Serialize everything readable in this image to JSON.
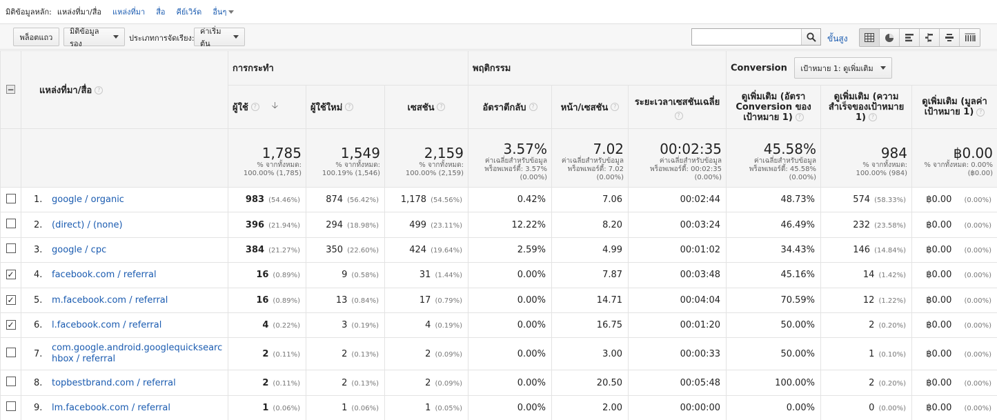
{
  "dimension_bar": {
    "primary_label": "มิติข้อมูลหลัก:",
    "active": "แหล่งที่มา/สื่อ",
    "links": [
      "แหล่งที่มา",
      "สื่อ",
      "คีย์เวิร์ด"
    ],
    "more": "อื่นๆ"
  },
  "toolbar": {
    "plot_rows": "พล็อตแถว",
    "secondary_dimension": "มิติข้อมูลรอง",
    "sort_type_label": "ประเภทการจัดเรียง:",
    "sort_type_value": "ค่าเริ่มต้น",
    "search_value": "",
    "advanced": "ขั้นสูง"
  },
  "table": {
    "dimension_header": "แหล่งที่มา/สื่อ",
    "groups": {
      "acquisition": "การกระทำ",
      "behavior": "พฤติกรรม",
      "conversion": "Conversion",
      "goal_select": "เป้าหมาย 1: ดูเพิ่มเติม"
    },
    "columns": [
      "ผู้ใช้",
      "ผู้ใช้ใหม่",
      "เซสชัน",
      "อัตราตีกลับ",
      "หน้า/เซสชัน",
      "ระยะเวลาเซสชันเฉลี่ย",
      "ดูเพิ่มเติม (อัตรา Conversion ของเป้าหมาย 1)",
      "ดูเพิ่มเติม (ความสำเร็จของเป้าหมาย 1)",
      "ดูเพิ่มเติม (มูลค่าเป้าหมาย 1)"
    ],
    "totals": [
      {
        "value": "1,785",
        "l1": "% จากทั้งหมด:",
        "l2": "100.00% (1,785)"
      },
      {
        "value": "1,549",
        "l1": "% จากทั้งหมด:",
        "l2": "100.19% (1,546)"
      },
      {
        "value": "2,159",
        "l1": "% จากทั้งหมด:",
        "l2": "100.00% (2,159)"
      },
      {
        "value": "3.57%",
        "l1": "ค่าเฉลี่ยสำหรับข้อมูล",
        "l2": "พร็อพเพอร์ตี้: 3.57%",
        "l3": "(0.00%)"
      },
      {
        "value": "7.02",
        "l1": "ค่าเฉลี่ยสำหรับข้อมูล",
        "l2": "พร็อพเพอร์ตี้: 7.02",
        "l3": "(0.00%)"
      },
      {
        "value": "00:02:35",
        "l1": "ค่าเฉลี่ยสำหรับข้อมูล",
        "l2": "พร็อพเพอร์ตี้: 00:02:35",
        "l3": "(0.00%)"
      },
      {
        "value": "45.58%",
        "l1": "ค่าเฉลี่ยสำหรับข้อมูล",
        "l2": "พร็อพเพอร์ตี้: 45.58%",
        "l3": "(0.00%)"
      },
      {
        "value": "984",
        "l1": "% จากทั้งหมด:",
        "l2": "100.00% (984)"
      },
      {
        "value": "฿0.00",
        "l1": "% จากทั้งหมด: 0.00%",
        "l2": "(฿0.00)"
      }
    ],
    "rows": [
      {
        "idx": "1.",
        "checked": false,
        "source": "google / organic",
        "users": "983",
        "users_pct": "(54.46%)",
        "new_users": "874",
        "new_users_pct": "(56.42%)",
        "sessions": "1,178",
        "sessions_pct": "(54.56%)",
        "bounce": "0.42%",
        "pages": "7.06",
        "duration": "00:02:44",
        "conv_rate": "48.73%",
        "completions": "574",
        "completions_pct": "(58.33%)",
        "value": "฿0.00",
        "value_pct": "(0.00%)"
      },
      {
        "idx": "2.",
        "checked": false,
        "source": "(direct) / (none)",
        "users": "396",
        "users_pct": "(21.94%)",
        "new_users": "294",
        "new_users_pct": "(18.98%)",
        "sessions": "499",
        "sessions_pct": "(23.11%)",
        "bounce": "12.22%",
        "pages": "8.20",
        "duration": "00:03:24",
        "conv_rate": "46.49%",
        "completions": "232",
        "completions_pct": "(23.58%)",
        "value": "฿0.00",
        "value_pct": "(0.00%)"
      },
      {
        "idx": "3.",
        "checked": false,
        "source": "google / cpc",
        "users": "384",
        "users_pct": "(21.27%)",
        "new_users": "350",
        "new_users_pct": "(22.60%)",
        "sessions": "424",
        "sessions_pct": "(19.64%)",
        "bounce": "2.59%",
        "pages": "4.99",
        "duration": "00:01:02",
        "conv_rate": "34.43%",
        "completions": "146",
        "completions_pct": "(14.84%)",
        "value": "฿0.00",
        "value_pct": "(0.00%)"
      },
      {
        "idx": "4.",
        "checked": true,
        "source": "facebook.com / referral",
        "users": "16",
        "users_pct": "(0.89%)",
        "new_users": "9",
        "new_users_pct": "(0.58%)",
        "sessions": "31",
        "sessions_pct": "(1.44%)",
        "bounce": "0.00%",
        "pages": "7.87",
        "duration": "00:03:48",
        "conv_rate": "45.16%",
        "completions": "14",
        "completions_pct": "(1.42%)",
        "value": "฿0.00",
        "value_pct": "(0.00%)"
      },
      {
        "idx": "5.",
        "checked": true,
        "source": "m.facebook.com / referral",
        "users": "16",
        "users_pct": "(0.89%)",
        "new_users": "13",
        "new_users_pct": "(0.84%)",
        "sessions": "17",
        "sessions_pct": "(0.79%)",
        "bounce": "0.00%",
        "pages": "14.71",
        "duration": "00:04:04",
        "conv_rate": "70.59%",
        "completions": "12",
        "completions_pct": "(1.22%)",
        "value": "฿0.00",
        "value_pct": "(0.00%)"
      },
      {
        "idx": "6.",
        "checked": true,
        "source": "l.facebook.com / referral",
        "users": "4",
        "users_pct": "(0.22%)",
        "new_users": "3",
        "new_users_pct": "(0.19%)",
        "sessions": "4",
        "sessions_pct": "(0.19%)",
        "bounce": "0.00%",
        "pages": "16.75",
        "duration": "00:01:20",
        "conv_rate": "50.00%",
        "completions": "2",
        "completions_pct": "(0.20%)",
        "value": "฿0.00",
        "value_pct": "(0.00%)"
      },
      {
        "idx": "7.",
        "checked": false,
        "source": "com.google.android.googlequicksearchbox / referral",
        "users": "2",
        "users_pct": "(0.11%)",
        "new_users": "2",
        "new_users_pct": "(0.13%)",
        "sessions": "2",
        "sessions_pct": "(0.09%)",
        "bounce": "0.00%",
        "pages": "3.00",
        "duration": "00:00:33",
        "conv_rate": "50.00%",
        "completions": "1",
        "completions_pct": "(0.10%)",
        "value": "฿0.00",
        "value_pct": "(0.00%)"
      },
      {
        "idx": "8.",
        "checked": false,
        "source": "topbestbrand.com / referral",
        "users": "2",
        "users_pct": "(0.11%)",
        "new_users": "2",
        "new_users_pct": "(0.13%)",
        "sessions": "2",
        "sessions_pct": "(0.09%)",
        "bounce": "0.00%",
        "pages": "20.50",
        "duration": "00:05:48",
        "conv_rate": "100.00%",
        "completions": "2",
        "completions_pct": "(0.20%)",
        "value": "฿0.00",
        "value_pct": "(0.00%)"
      },
      {
        "idx": "9.",
        "checked": false,
        "source": "lm.facebook.com / referral",
        "users": "1",
        "users_pct": "(0.06%)",
        "new_users": "1",
        "new_users_pct": "(0.06%)",
        "sessions": "1",
        "sessions_pct": "(0.05%)",
        "bounce": "0.00%",
        "pages": "2.00",
        "duration": "00:00:00",
        "conv_rate": "0.00%",
        "completions": "0",
        "completions_pct": "(0.00%)",
        "value": "฿0.00",
        "value_pct": "(0.00%)"
      }
    ]
  },
  "colors": {
    "link": "#1a5bb0",
    "header_bg": "#f5f5f5",
    "border": "#e3e3e3"
  },
  "icons": [
    "search-icon",
    "table-view-icon",
    "pie-view-icon",
    "bar-view-icon",
    "comparison-view-icon",
    "term-cloud-icon",
    "pivot-view-icon"
  ]
}
